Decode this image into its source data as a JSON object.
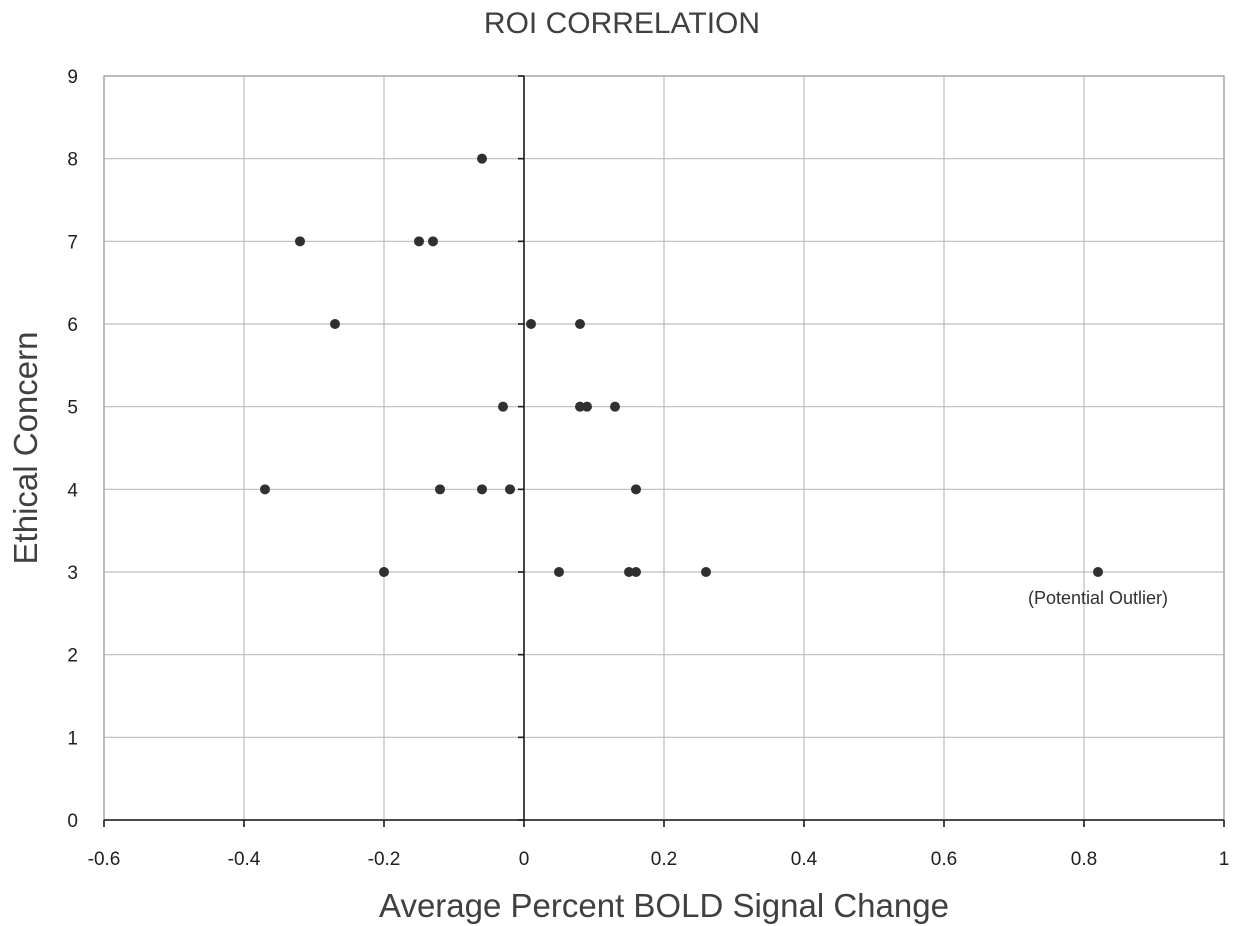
{
  "chart_data": {
    "type": "scatter",
    "title": "ROI CORRELATION",
    "xlabel": "Average Percent BOLD Signal Change",
    "ylabel": "Ethical Concern",
    "xlim": [
      -0.6,
      1
    ],
    "ylim": [
      0,
      9
    ],
    "x_ticks": [
      "-0.6",
      "-0.4",
      "-0.2",
      "0",
      "0.2",
      "0.4",
      "0.6",
      "0.8",
      "1"
    ],
    "y_ticks": [
      "0",
      "1",
      "2",
      "3",
      "4",
      "5",
      "6",
      "7",
      "8",
      "9"
    ],
    "grid": true,
    "series": [
      {
        "points": [
          {
            "x": -0.06,
            "y": 8
          },
          {
            "x": -0.32,
            "y": 7
          },
          {
            "x": -0.15,
            "y": 7
          },
          {
            "x": -0.13,
            "y": 7
          },
          {
            "x": -0.27,
            "y": 6
          },
          {
            "x": 0.01,
            "y": 6
          },
          {
            "x": 0.08,
            "y": 6
          },
          {
            "x": -0.03,
            "y": 5
          },
          {
            "x": 0.08,
            "y": 5
          },
          {
            "x": 0.09,
            "y": 5
          },
          {
            "x": 0.13,
            "y": 5
          },
          {
            "x": -0.37,
            "y": 4
          },
          {
            "x": -0.12,
            "y": 4
          },
          {
            "x": -0.06,
            "y": 4
          },
          {
            "x": -0.02,
            "y": 4
          },
          {
            "x": 0.16,
            "y": 4
          },
          {
            "x": -0.2,
            "y": 3
          },
          {
            "x": 0.05,
            "y": 3
          },
          {
            "x": 0.15,
            "y": 3
          },
          {
            "x": 0.16,
            "y": 3
          },
          {
            "x": 0.26,
            "y": 3
          },
          {
            "x": 0.82,
            "y": 3
          }
        ]
      }
    ],
    "annotations": [
      {
        "text": "(Potential Outlier)",
        "x": 0.82,
        "y": 3
      }
    ]
  }
}
